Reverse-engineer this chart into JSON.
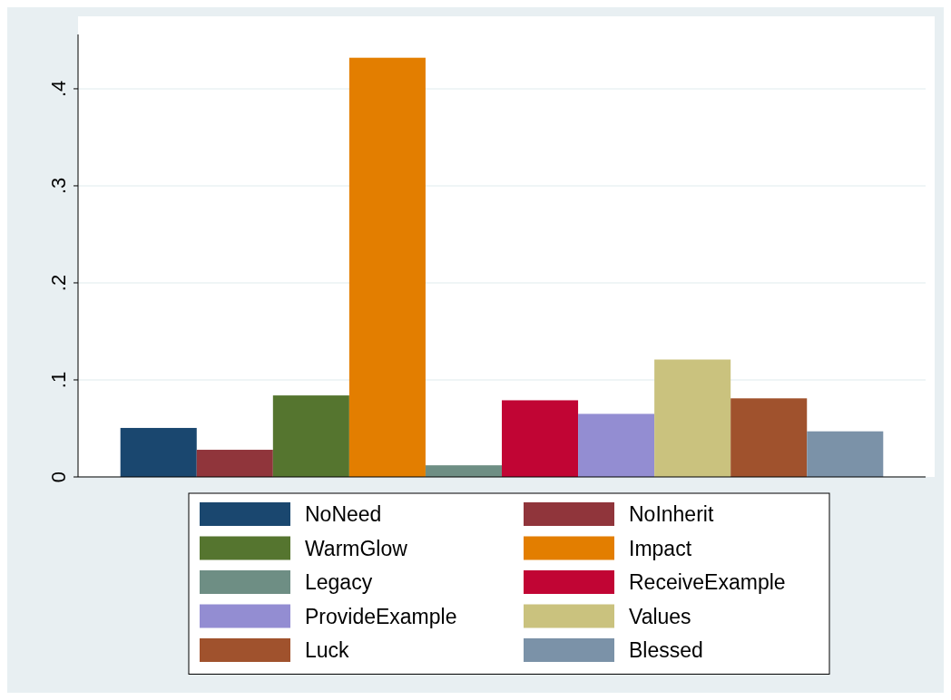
{
  "chart_data": {
    "type": "bar",
    "categories": [
      null
    ],
    "series": [
      {
        "name": "NoNeed",
        "color": "#1a476f",
        "values": [
          0.0505
        ]
      },
      {
        "name": "NoInherit",
        "color": "#90353b",
        "values": [
          0.028
        ]
      },
      {
        "name": "WarmGlow",
        "color": "#55752f",
        "values": [
          0.084
        ]
      },
      {
        "name": "Impact",
        "color": "#e37e00",
        "values": [
          0.432
        ]
      },
      {
        "name": "Legacy",
        "color": "#6e8e84",
        "values": [
          0.012
        ]
      },
      {
        "name": "ReceiveExample",
        "color": "#c10534",
        "values": [
          0.079
        ]
      },
      {
        "name": "ProvideExample",
        "color": "#938dd2",
        "values": [
          0.065
        ]
      },
      {
        "name": "Values",
        "color": "#cac27e",
        "values": [
          0.121
        ]
      },
      {
        "name": "Luck",
        "color": "#a0522d",
        "values": [
          0.081
        ]
      },
      {
        "name": "Blessed",
        "color": "#7b92a8",
        "values": [
          0.047
        ]
      }
    ],
    "ylim": [
      0,
      0.456
    ],
    "yticks": [
      0,
      {
        "value": 0.1,
        "label": ".1"
      },
      {
        "value": 0.2,
        "label": ".2"
      },
      {
        "value": 0.3,
        "label": ".3"
      },
      {
        "value": 0.4,
        "label": ".4"
      }
    ],
    "grid": "y",
    "legend": "bottom"
  }
}
